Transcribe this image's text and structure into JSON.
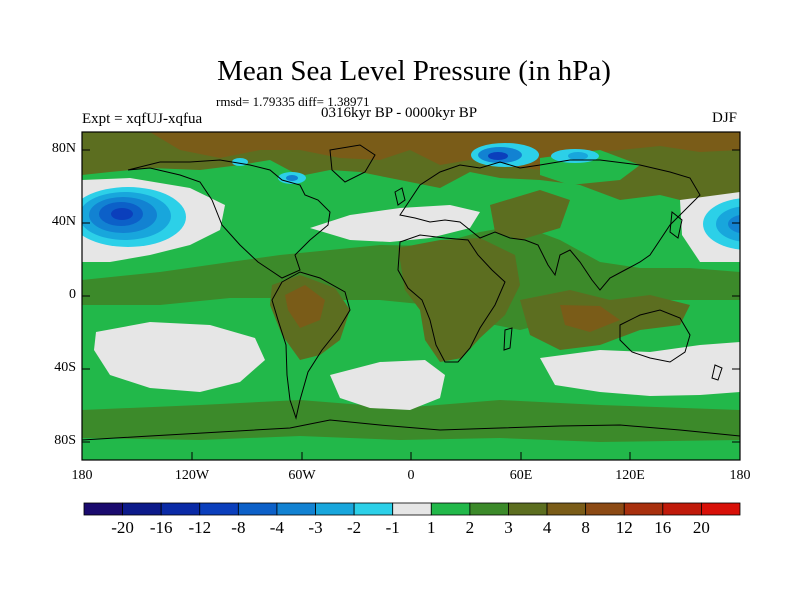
{
  "title": "Mean Sea Level Pressure (in hPa)",
  "stats": "rmsd= 1.79335 diff= 1.38971",
  "experiment": "Expt = xqfUJ-xqfua",
  "period": "0316kyr BP - 0000kyr BP",
  "season": "DJF",
  "lat_labels": [
    "80N",
    "40N",
    "0",
    "40S",
    "80S"
  ],
  "lon_labels": [
    "180",
    "120W",
    "60W",
    "0",
    "60E",
    "120E",
    "180"
  ],
  "colorbar": {
    "labels": [
      "-20",
      "-16",
      "-12",
      "-8",
      "-4",
      "-3",
      "-2",
      "-1",
      "1",
      "2",
      "3",
      "4",
      "8",
      "12",
      "16",
      "20"
    ],
    "colors": [
      "#1a0a6e",
      "#0c1a8a",
      "#0a2aa6",
      "#0b3fbc",
      "#0c60c8",
      "#1282d2",
      "#18a6dc",
      "#2cd0e8",
      "#e6e6e6",
      "#22b84a",
      "#3c8a2a",
      "#5c6e20",
      "#7a5c18",
      "#8c4a14",
      "#a8300e",
      "#c01a0a",
      "#d81008"
    ]
  },
  "legend_colors": {
    "bg_green": "#22b84a",
    "dark_green": "#3c8a2a",
    "olive": "#5c6e20",
    "brown": "#7a5c18",
    "light_grey": "#e6e6e6",
    "blue1": "#1282d2",
    "blue2": "#0c60c8",
    "blue3": "#0b3fbc",
    "cyan": "#2cd0e8"
  }
}
